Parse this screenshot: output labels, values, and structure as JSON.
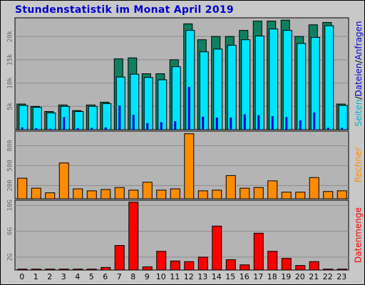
{
  "title": "Stundenstatistik im Monat April 2019",
  "colors": {
    "seiten": "#0e8060",
    "dateien": "#00e4ff",
    "anfragen": "#0000cc",
    "rechner": "#ff8c00",
    "datenmenge": "#ff0000",
    "plot_bg": "#b4b4b4",
    "frame_bg": "#c8c8c8"
  },
  "chart_data": [
    {
      "type": "bar",
      "panel": "top",
      "categories": [
        "0",
        "1",
        "2",
        "3",
        "4",
        "5",
        "6",
        "7",
        "8",
        "9",
        "10",
        "11",
        "12",
        "13",
        "14",
        "15",
        "16",
        "17",
        "18",
        "19",
        "20",
        "21",
        "22",
        "23"
      ],
      "ylim": [
        0,
        24000
      ],
      "yticks": [
        "5k",
        "10k",
        "15k",
        "20k"
      ],
      "ytick_values": [
        5000,
        10000,
        15000,
        20000
      ],
      "right_label": {
        "seiten": "Seiten",
        "sep1": "/",
        "dateien": "Dateien",
        "sep2": "/",
        "anfragen": "Anfragen"
      },
      "series": [
        {
          "name": "Seiten",
          "key": "seiten",
          "values": [
            5500,
            5000,
            3900,
            5300,
            4100,
            5300,
            5900,
            15200,
            15400,
            12000,
            12000,
            15000,
            22700,
            19300,
            20000,
            20000,
            21300,
            23300,
            23300,
            23500,
            20000,
            22500,
            23000,
            5500
          ]
        },
        {
          "name": "Dateien",
          "key": "dateien",
          "values": [
            5200,
            4800,
            3600,
            5000,
            3900,
            5000,
            5600,
            11300,
            11900,
            11200,
            10700,
            13500,
            21300,
            16700,
            17300,
            18100,
            19300,
            20100,
            21600,
            21300,
            18500,
            19800,
            22300,
            5200
          ]
        },
        {
          "name": "Anfragen",
          "key": "anfragen",
          "values": [
            500,
            300,
            200,
            2700,
            300,
            400,
            500,
            5200,
            3200,
            1400,
            1600,
            1800,
            9200,
            2800,
            2600,
            2600,
            3300,
            3100,
            2900,
            2700,
            2000,
            3700,
            400,
            400
          ]
        }
      ]
    },
    {
      "type": "bar",
      "panel": "middle",
      "categories": [
        "0",
        "1",
        "2",
        "3",
        "4",
        "5",
        "6",
        "7",
        "8",
        "9",
        "10",
        "11",
        "12",
        "13",
        "14",
        "15",
        "16",
        "17",
        "18",
        "19",
        "20",
        "21",
        "22",
        "23"
      ],
      "ylim": [
        0,
        1020
      ],
      "yticks": [
        "200",
        "500",
        "800"
      ],
      "ytick_values": [
        200,
        500,
        800
      ],
      "right_label": "Rechner",
      "series": [
        {
          "name": "Rechner",
          "key": "rechner",
          "values": [
            310,
            160,
            90,
            540,
            150,
            120,
            140,
            170,
            130,
            250,
            130,
            150,
            980,
            120,
            130,
            350,
            160,
            170,
            270,
            100,
            100,
            320,
            110,
            120
          ]
        }
      ]
    },
    {
      "type": "bar",
      "panel": "bottom",
      "categories": [
        "0",
        "1",
        "2",
        "3",
        "4",
        "5",
        "6",
        "7",
        "8",
        "9",
        "10",
        "11",
        "12",
        "13",
        "14",
        "15",
        "16",
        "17",
        "18",
        "19",
        "20",
        "21",
        "22",
        "23"
      ],
      "ylim": [
        0,
        10.8
      ],
      "yticks": [
        "2G",
        "6G",
        "10G"
      ],
      "ytick_values": [
        2,
        6,
        10
      ],
      "right_label": "Datenmenge",
      "series": [
        {
          "name": "Datenmenge",
          "key": "datenmenge",
          "values": [
            0.15,
            0.15,
            0.15,
            0.15,
            0.15,
            0.15,
            0.4,
            3.8,
            10.5,
            0.5,
            2.9,
            1.4,
            1.3,
            2.0,
            6.8,
            1.6,
            0.8,
            5.7,
            2.9,
            1.8,
            0.7,
            1.3,
            0.15,
            0.15
          ]
        }
      ]
    }
  ]
}
